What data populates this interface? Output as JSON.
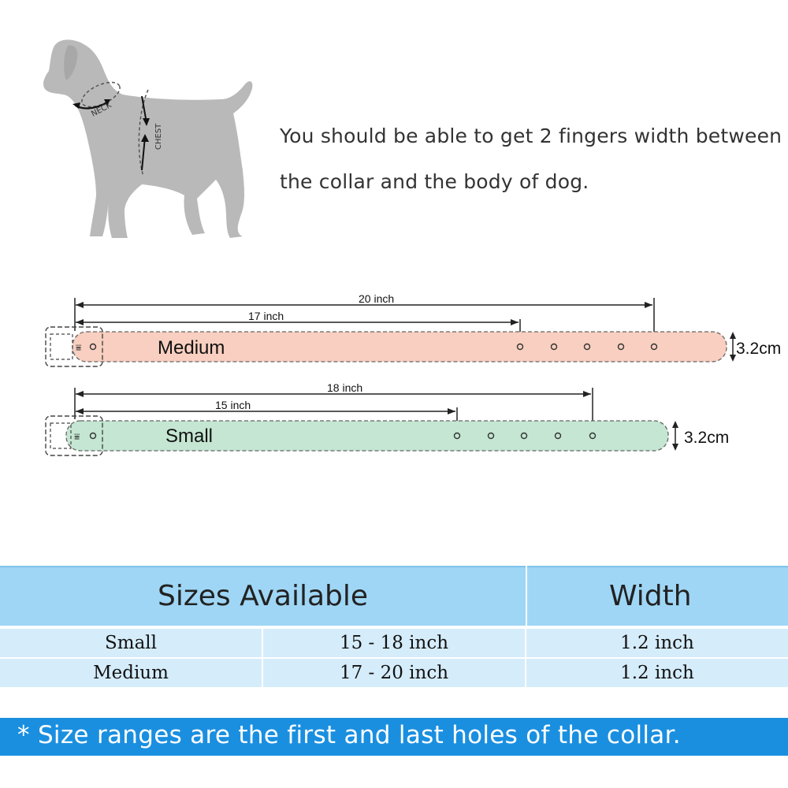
{
  "diagram": {
    "neck_label": "NECK",
    "chest_label": "CHEST"
  },
  "instructions": {
    "line1": "You should be able to get 2 fingers width between",
    "line2": "the collar and the body of dog."
  },
  "collars": {
    "medium": {
      "name": "Medium",
      "outer_length_label": "20 inch",
      "inner_length_label": "17 inch",
      "width_label": "3.2cm",
      "fill_color": "#f8cfc0"
    },
    "small": {
      "name": "Small",
      "outer_length_label": "18 inch",
      "inner_length_label": "15 inch",
      "width_label": "3.2cm",
      "fill_color": "#c4e6d2"
    }
  },
  "size_table": {
    "header": {
      "sizes": "Sizes Available",
      "width": "Width"
    },
    "rows": [
      {
        "size": "Small",
        "range": "15 - 18 inch",
        "width": "1.2 inch"
      },
      {
        "size": "Medium",
        "range": "17 - 20 inch",
        "width": "1.2 inch"
      }
    ],
    "colors": {
      "header": "#9fd6f5",
      "row": "#d5ecfa"
    }
  },
  "note": {
    "text": "* Size ranges are the first and last holes of the collar.",
    "color": "#1a8fe0"
  }
}
